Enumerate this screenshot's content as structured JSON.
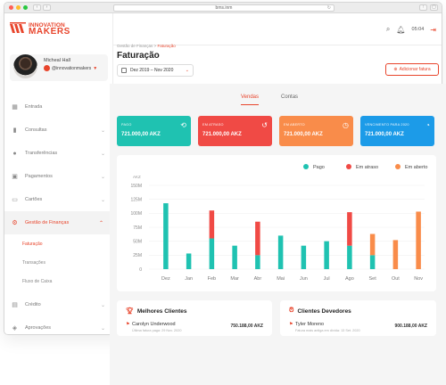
{
  "browser": {
    "url": "bms.inm"
  },
  "brand": {
    "line1": "INNOVATION",
    "line2": "MAKERS",
    "color": "#e8452c"
  },
  "user": {
    "name": "Micheal Hall",
    "handle": "@innovationmakers"
  },
  "menu": [
    {
      "label": "Entrada",
      "icon": "grid-icon",
      "chevron": false
    },
    {
      "label": "Consultas",
      "icon": "bar-chart-icon",
      "chevron": true
    },
    {
      "label": "Transferências",
      "icon": "info-icon",
      "chevron": true
    },
    {
      "label": "Pagamentos",
      "icon": "payment-icon",
      "chevron": true
    },
    {
      "label": "Cartões",
      "icon": "card-icon",
      "chevron": true
    },
    {
      "label": "Gestão de Finanças",
      "icon": "finance-icon",
      "chevron": true,
      "active": true
    }
  ],
  "submenu": [
    {
      "label": "Faturação",
      "active": true
    },
    {
      "label": "Transações"
    },
    {
      "label": "Fluxo de Caixa"
    }
  ],
  "menu_bottom": [
    {
      "label": "Crédito",
      "icon": "credit-icon"
    },
    {
      "label": "Aprovações",
      "icon": "shield-icon"
    }
  ],
  "topbar": {
    "time": "05:04"
  },
  "breadcrumb": {
    "parent": "Gestão de Finanças",
    "separator": ">",
    "current": "Faturação"
  },
  "page": {
    "title": "Faturação",
    "date_range": "Dez 2019 – Nov 2020",
    "add_button": "Adicionar fatura"
  },
  "tabs": [
    {
      "label": "Vendas",
      "active": true
    },
    {
      "label": "Contas"
    }
  ],
  "cards": [
    {
      "label": "PAGO",
      "value": "721.000,00 AKZ",
      "color": "#1fc2b1",
      "icon": "hand-coin-icon"
    },
    {
      "label": "EM ATRASO",
      "value": "721.000,00 AKZ",
      "color": "#f04a45",
      "icon": "history-icon"
    },
    {
      "label": "EM ABERTO",
      "value": "721.000,00 AKZ",
      "color": "#f98c4a",
      "icon": "clock-check-icon"
    },
    {
      "label": "VENCIMENTO PARA 2020",
      "value": "721.000,00 AKZ",
      "color": "#1c9be8",
      "icon": "calendar-clock-icon"
    }
  ],
  "chart_data": {
    "type": "bar",
    "stacked": true,
    "ylabel": "AKZ",
    "yticks": [
      "150M",
      "125M",
      "100M",
      "75M",
      "50M",
      "25M",
      "0"
    ],
    "ylim": [
      0,
      150
    ],
    "categories": [
      "Dez",
      "Jan",
      "Feb",
      "Mar",
      "Abr",
      "Mai",
      "Jun",
      "Jul",
      "Ago",
      "Set",
      "Out",
      "Nov"
    ],
    "series": [
      {
        "name": "Pago",
        "color": "#1fc2b1",
        "values": [
          118,
          28,
          55,
          42,
          25,
          60,
          42,
          50,
          42,
          25,
          0,
          0
        ]
      },
      {
        "name": "Em atraso",
        "color": "#f04a45",
        "values": [
          0,
          0,
          50,
          0,
          60,
          0,
          0,
          0,
          60,
          0,
          0,
          0
        ]
      },
      {
        "name": "Em aberto",
        "color": "#f98c4a",
        "values": [
          0,
          0,
          0,
          0,
          0,
          0,
          0,
          0,
          0,
          38,
          52,
          103
        ]
      }
    ],
    "legend_position": "top-right",
    "grid": true
  },
  "best_clients": {
    "title": "Melhores Clientes",
    "rows": [
      {
        "name": "Carolyn Underwood",
        "sub": "Última fatura paga: 29 Nov. 2020",
        "amount": "750.188,00 AKZ"
      }
    ]
  },
  "debtor_clients": {
    "title": "Clientes Devedores",
    "rows": [
      {
        "name": "Tyler Moreno",
        "sub": "Fatura mais antiga em dívida: 13 Set. 2020",
        "amount": "900.188,00 AKZ"
      }
    ]
  }
}
